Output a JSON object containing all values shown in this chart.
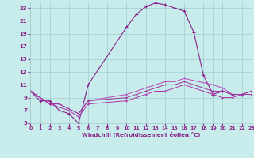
{
  "xlabel": "Windchill (Refroidissement éolien,°C)",
  "xlim": [
    0,
    23
  ],
  "ylim": [
    5,
    24
  ],
  "yticks": [
    5,
    7,
    9,
    11,
    13,
    15,
    17,
    19,
    21,
    23
  ],
  "xticks": [
    0,
    1,
    2,
    3,
    4,
    5,
    6,
    7,
    8,
    9,
    10,
    11,
    12,
    13,
    14,
    15,
    16,
    17,
    18,
    19,
    20,
    21,
    22,
    23
  ],
  "bg_color": "#c8ecec",
  "grid_color": "#9ecece",
  "line_color_main": "#882288",
  "line_color_lower1": "#bb44bb",
  "line_color_lower2": "#993399",
  "line_color_lower3": "#aa33aa",
  "series1_x": [
    0,
    1,
    2,
    3,
    4,
    5,
    6,
    10,
    11,
    12,
    13,
    14,
    15,
    16,
    17,
    18,
    19,
    20,
    21,
    22,
    23
  ],
  "series1_y": [
    10,
    8.5,
    8.5,
    7,
    6.5,
    5,
    11,
    20,
    22,
    23.2,
    23.8,
    23.5,
    23,
    22.5,
    19.2,
    12.5,
    9.5,
    10,
    9.5,
    9.5,
    10
  ],
  "series2_x": [
    0,
    2,
    3,
    5,
    6,
    10,
    11,
    12,
    13,
    14,
    15,
    16,
    19,
    20,
    21,
    22,
    23
  ],
  "series2_y": [
    10,
    8,
    8,
    6.5,
    8.5,
    9.5,
    10,
    10.5,
    11,
    11.5,
    11.5,
    12,
    11,
    10.5,
    9.5,
    9.5,
    9.5
  ],
  "series3_x": [
    0,
    2,
    3,
    5,
    6,
    10,
    11,
    12,
    13,
    14,
    15,
    16,
    19,
    20,
    21,
    22,
    23
  ],
  "series3_y": [
    10,
    8,
    8,
    6.5,
    8.5,
    9,
    9.5,
    10,
    10.5,
    11,
    11,
    11.5,
    10,
    10,
    9.5,
    9.5,
    9.5
  ],
  "series4_x": [
    0,
    2,
    3,
    4,
    5,
    6,
    10,
    11,
    12,
    13,
    14,
    15,
    16,
    19,
    20,
    21,
    22,
    23
  ],
  "series4_y": [
    10,
    8,
    7.5,
    7,
    6,
    8,
    8.5,
    9,
    9.5,
    10,
    10,
    10.5,
    11,
    9.5,
    9,
    9,
    9.5,
    9.5
  ]
}
